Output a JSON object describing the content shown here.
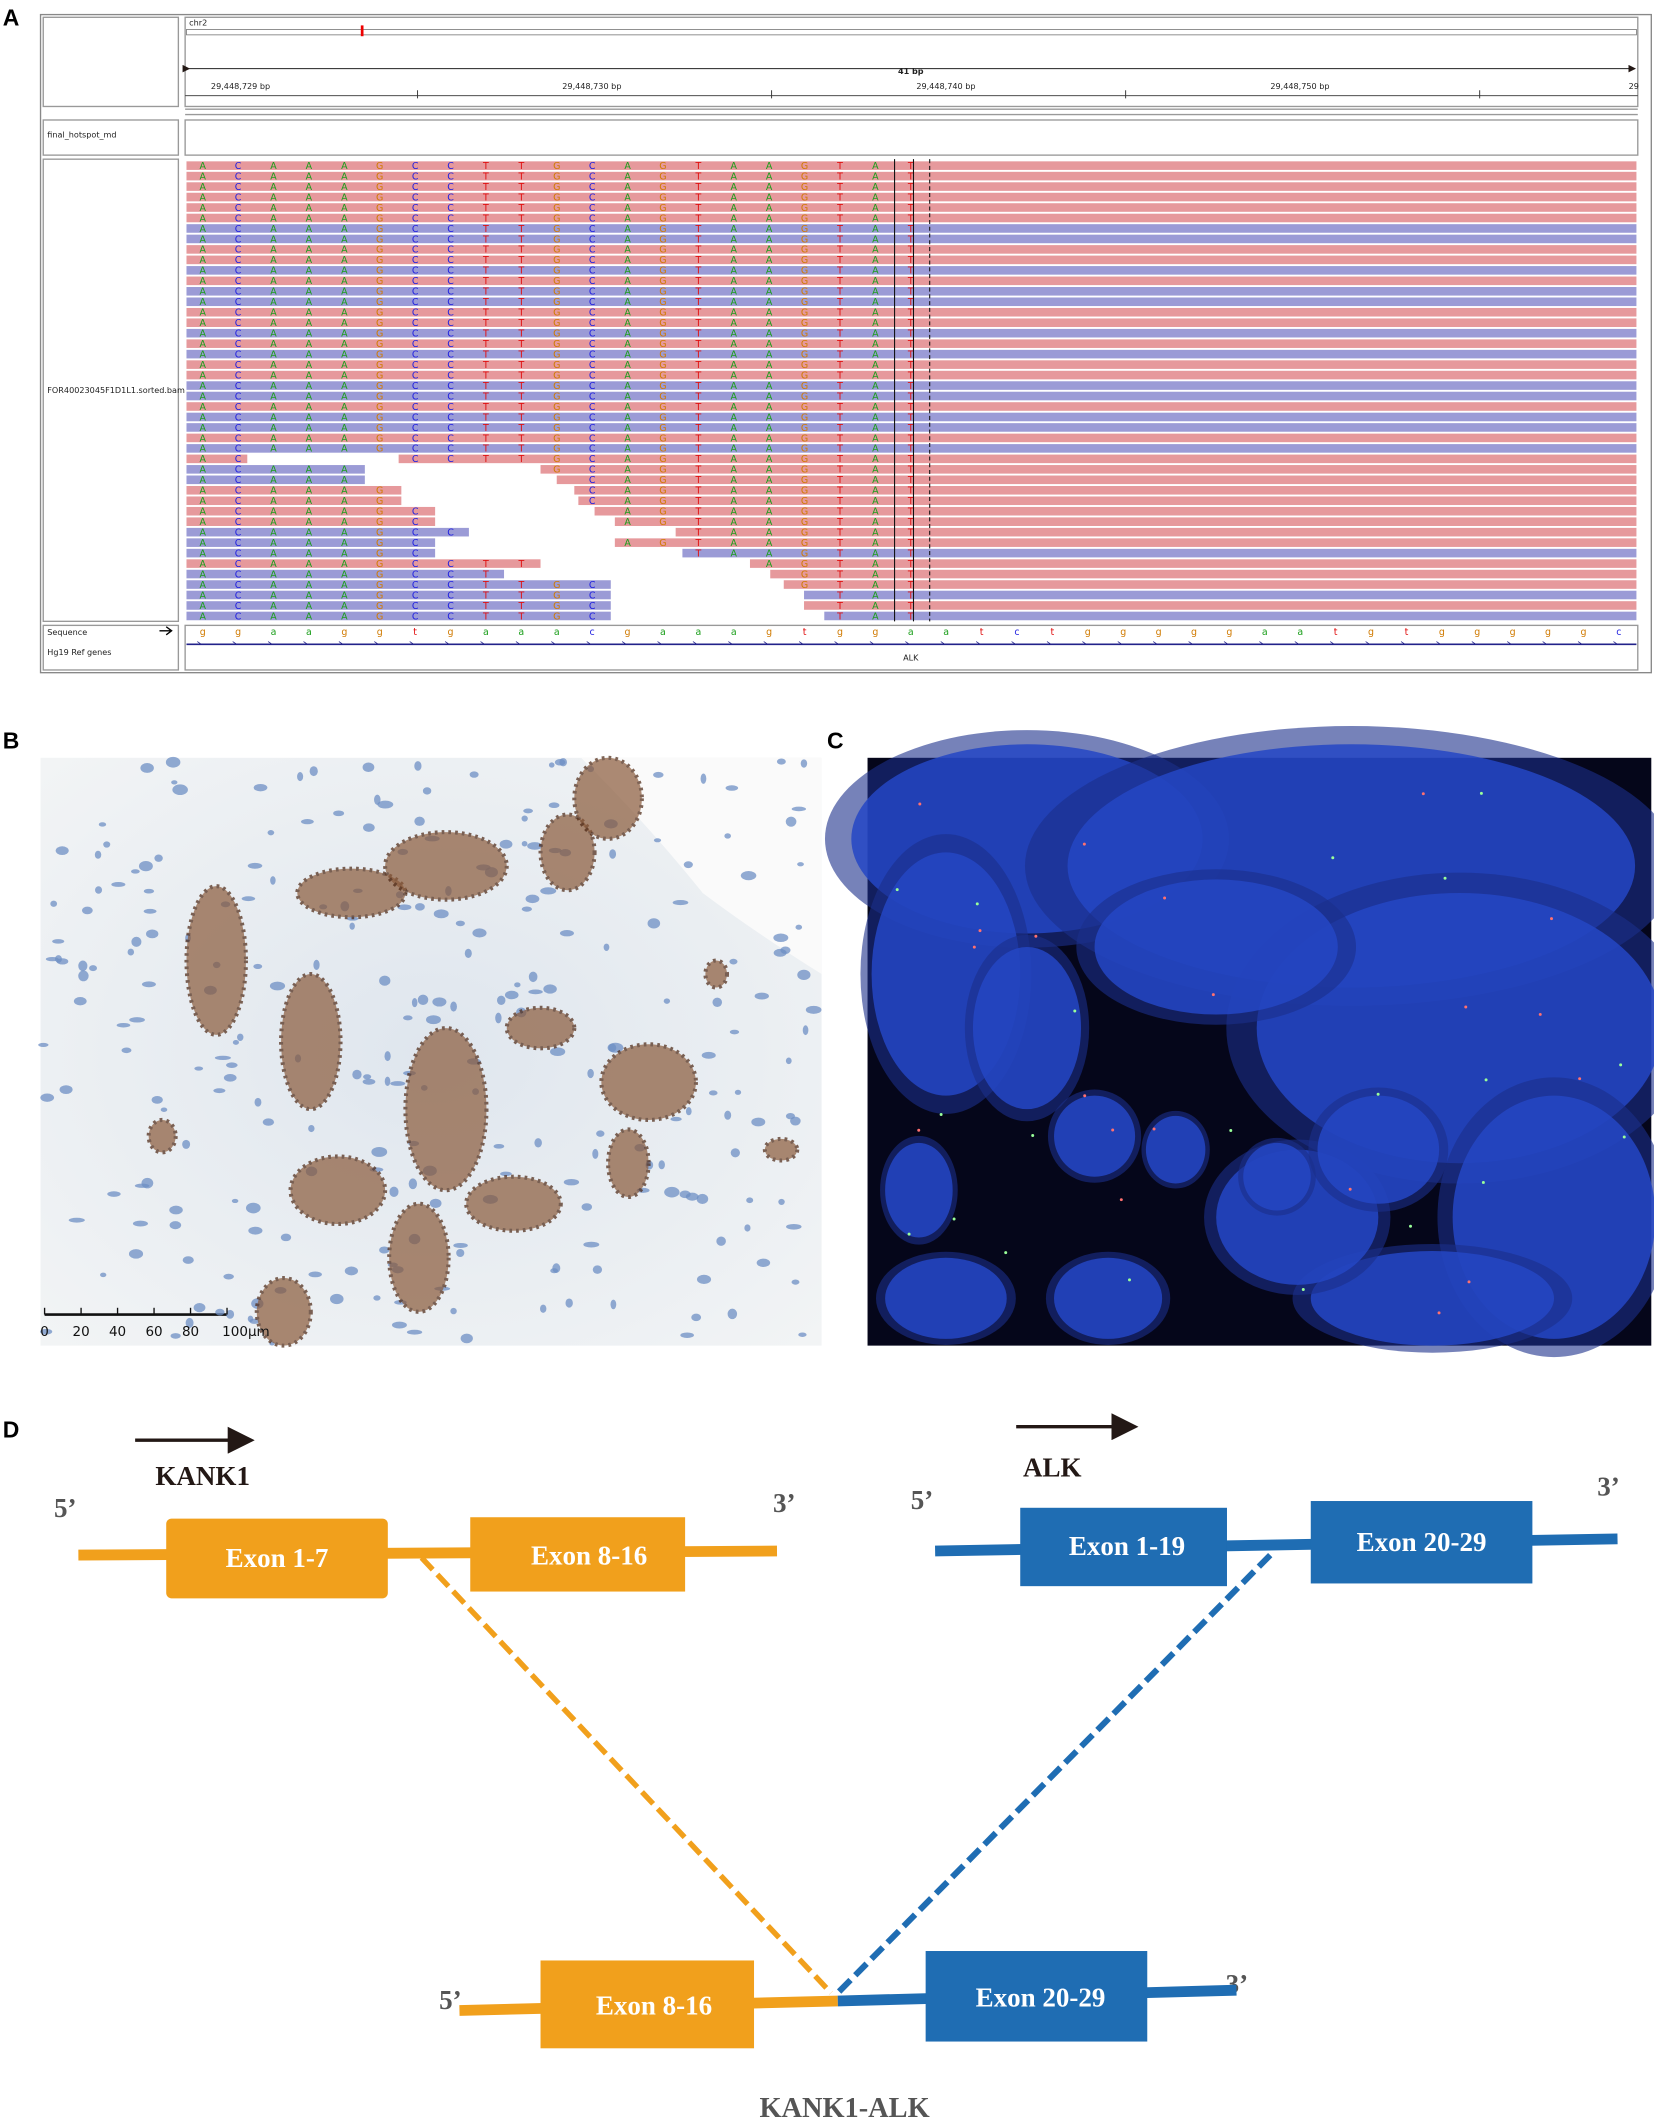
{
  "panel_labels": [
    "A",
    "B",
    "C",
    "D"
  ],
  "igv": {
    "chromosome": "chr2",
    "span": "41 bp",
    "ruler_labels": [
      "29,448,729 bp",
      "29,448,730 bp",
      "29,448,740 bp",
      "29,448,750 bp",
      "29"
    ],
    "tracks": [
      "final_hotspot_md",
      "FOR40023045F1D1L1.sorted.bam",
      "Sequence",
      "Hg19 Ref genes"
    ],
    "read_bases": [
      "A",
      "C",
      "A",
      "A",
      "A",
      "G",
      "C",
      "C",
      "T",
      "T",
      "G",
      "C",
      "A",
      "G",
      "T",
      "A",
      "A",
      "G",
      "T",
      "A",
      "T"
    ],
    "reference_sequence": [
      "g",
      "g",
      "a",
      "a",
      "g",
      "g",
      "t",
      "g",
      "a",
      "a",
      "a",
      "c",
      "g",
      "a",
      "a",
      "a",
      "g",
      "t",
      "g",
      "g",
      "a",
      "a",
      "t",
      "c",
      "t",
      "g",
      "g",
      "g",
      "g",
      "g",
      "a",
      "a",
      "t",
      "g",
      "t",
      "g",
      "g",
      "g",
      "g",
      "g",
      "c"
    ],
    "gene": "ALK"
  },
  "ihc": {
    "scale_labels": [
      "0",
      "20",
      "40",
      "60",
      "80",
      "100μm"
    ]
  },
  "fusion": {
    "kank1": "KANK1",
    "alk": "ALK",
    "five_prime": "5’",
    "three_prime": "3’",
    "kank1_exons": [
      "Exon 1-7",
      "Exon 8-16"
    ],
    "alk_exons": [
      "Exon 1-19",
      "Exon 20-29"
    ],
    "fused_exons": [
      "Exon 8-16",
      "Exon  20-29"
    ],
    "fusion_name": "KANK1-ALK"
  }
}
